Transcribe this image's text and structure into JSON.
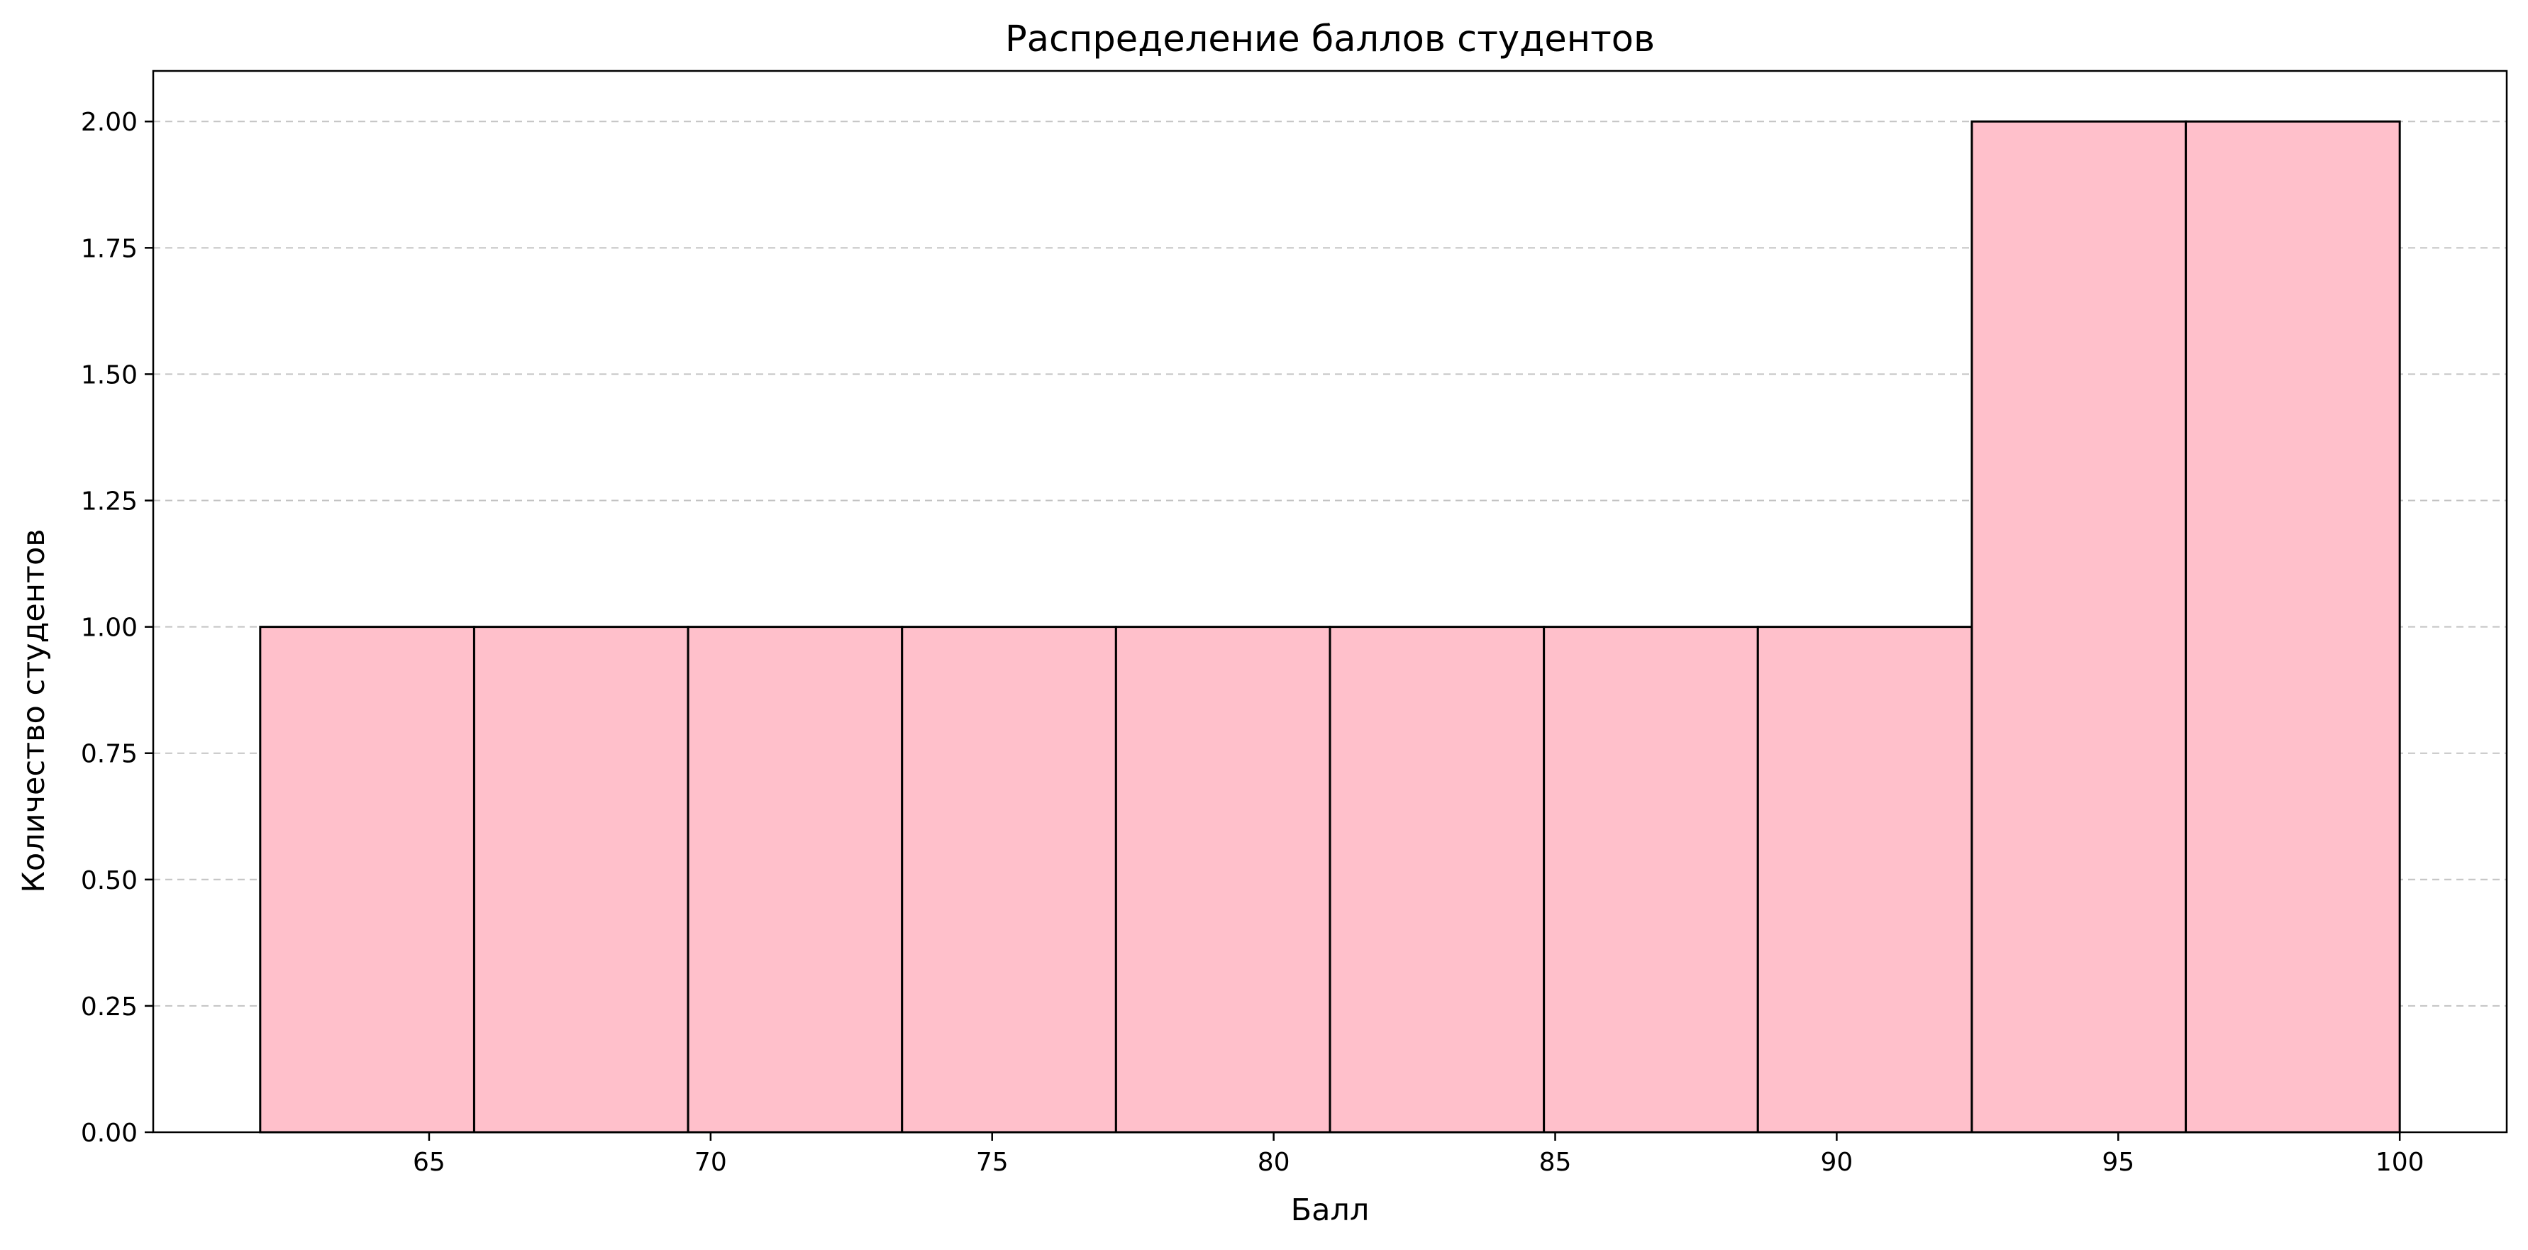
{
  "chart_data": {
    "type": "bar",
    "subtype": "histogram",
    "title": "Распределение баллов студентов",
    "xlabel": "Балл",
    "ylabel": "Количество студентов",
    "bins": [
      {
        "start": 62.0,
        "end": 65.8,
        "count": 1
      },
      {
        "start": 65.8,
        "end": 69.6,
        "count": 1
      },
      {
        "start": 69.6,
        "end": 73.4,
        "count": 1
      },
      {
        "start": 73.4,
        "end": 77.2,
        "count": 1
      },
      {
        "start": 77.2,
        "end": 81.0,
        "count": 1
      },
      {
        "start": 81.0,
        "end": 84.8,
        "count": 1
      },
      {
        "start": 84.8,
        "end": 88.6,
        "count": 1
      },
      {
        "start": 88.6,
        "end": 92.4,
        "count": 1
      },
      {
        "start": 92.4,
        "end": 96.2,
        "count": 2
      },
      {
        "start": 96.2,
        "end": 100.0,
        "count": 2
      }
    ],
    "xlim": [
      60.1,
      101.9
    ],
    "ylim": [
      0,
      2.1
    ],
    "xticks": [
      65,
      70,
      75,
      80,
      85,
      90,
      95,
      100
    ],
    "yticks": [
      "0.00",
      "0.25",
      "0.50",
      "0.75",
      "1.00",
      "1.25",
      "1.50",
      "1.75",
      "2.00"
    ],
    "grid": "y-dashed",
    "colors": {
      "bar_fill": "#ffc0cb",
      "bar_edge": "#000000",
      "grid": "#b0b0b0"
    }
  }
}
